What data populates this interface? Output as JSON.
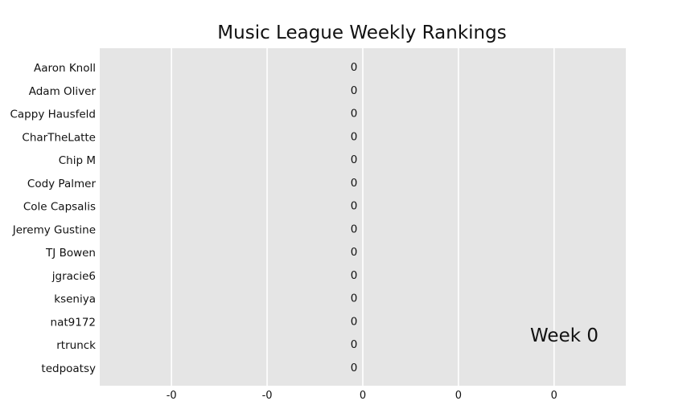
{
  "chart_data": {
    "type": "bar",
    "orientation": "horizontal",
    "title": "Music League Weekly Rankings",
    "categories": [
      "Aaron Knoll",
      "Adam Oliver",
      "Cappy Hausfeld",
      "CharTheLatte",
      "Chip M",
      "Cody Palmer",
      "Cole Capsalis",
      "Jeremy Gustine",
      "TJ Bowen",
      "jgracie6",
      "kseniya",
      "nat9172",
      "rtrunck",
      "tedpoatsy"
    ],
    "values": [
      0,
      0,
      0,
      0,
      0,
      0,
      0,
      0,
      0,
      0,
      0,
      0,
      0,
      0
    ],
    "value_labels": [
      "0",
      "0",
      "0",
      "0",
      "0",
      "0",
      "0",
      "0",
      "0",
      "0",
      "0",
      "0",
      "0",
      "0"
    ],
    "xlim": [
      -0.055,
      0.055
    ],
    "xticks": [
      -0.04,
      -0.02,
      0,
      0.02,
      0.04
    ],
    "xtick_labels": [
      "-0",
      "-0",
      "0",
      "0",
      "0"
    ],
    "grid": "vertical",
    "annotation": "Week 0",
    "colors": {
      "plot_background": "#e5e5e5",
      "grid": "#ffffff",
      "text": "#111111"
    }
  }
}
